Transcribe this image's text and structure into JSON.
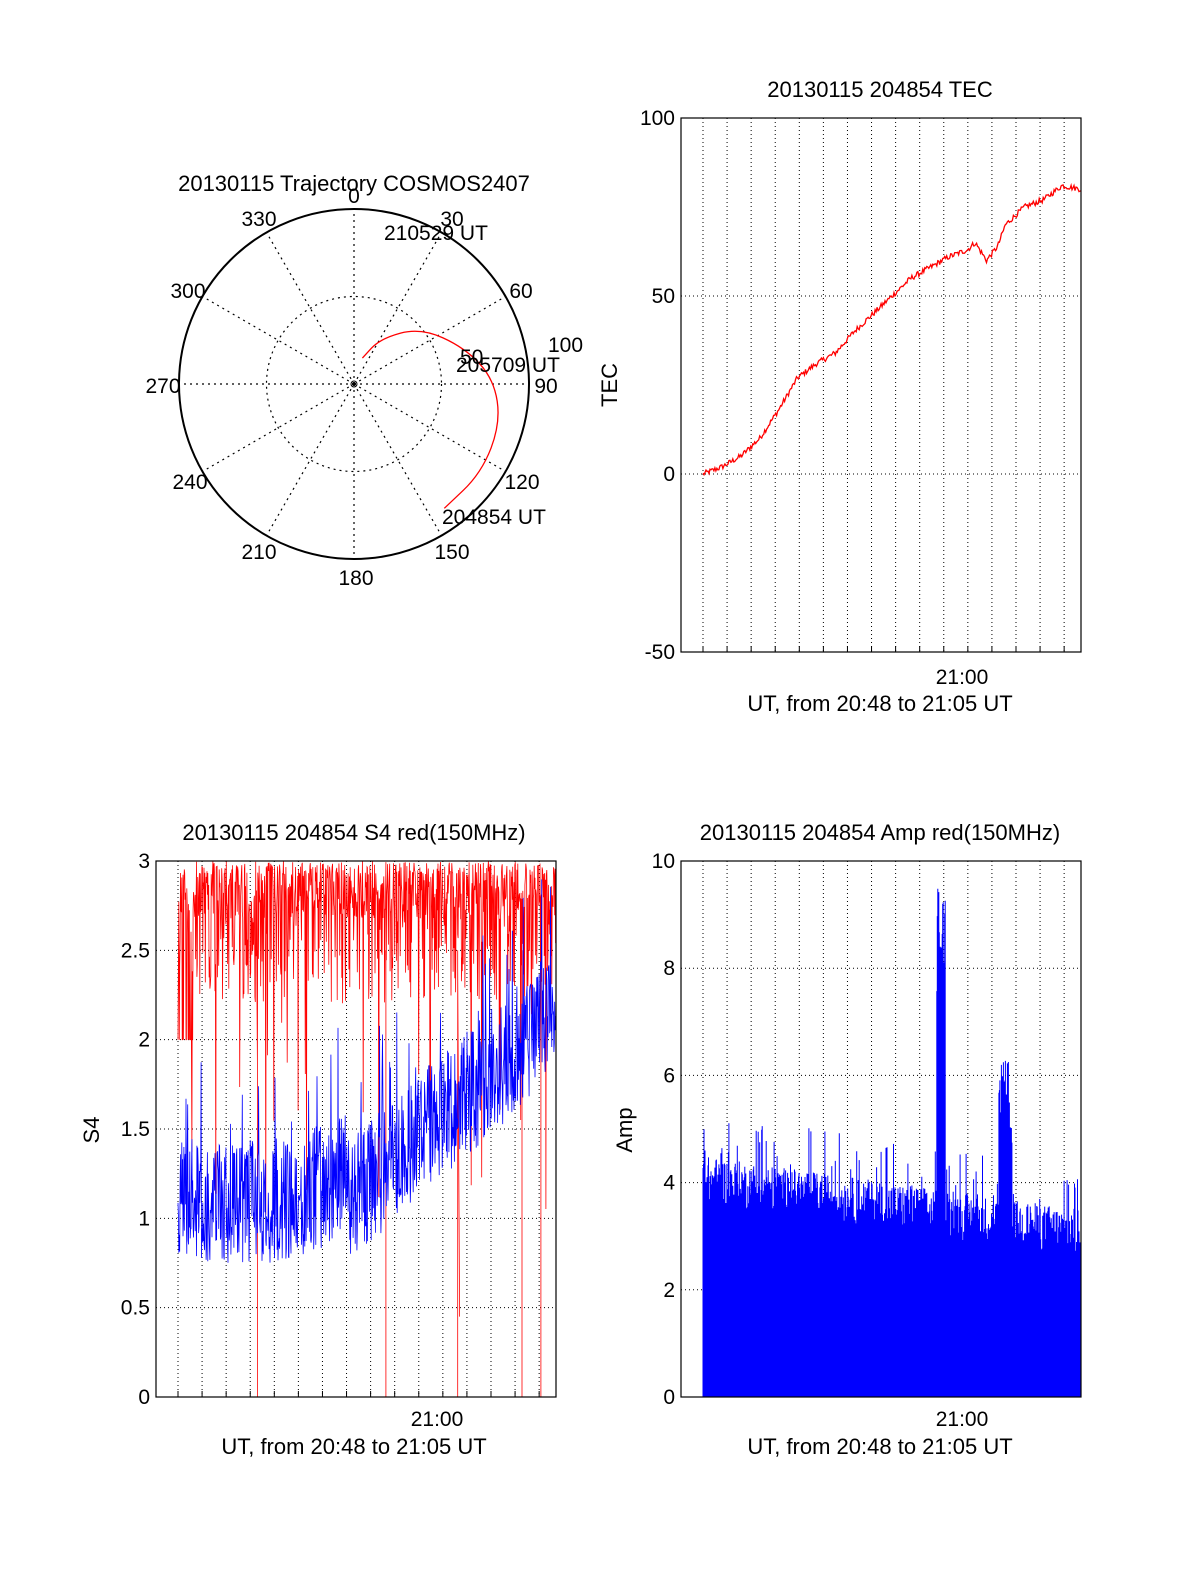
{
  "chart_data": [
    {
      "type": "polar",
      "title": "20130115 Trajectory COSMOS2407",
      "angle_labels": [
        "0",
        "30",
        "60",
        "90",
        "120",
        "150",
        "180",
        "210",
        "240",
        "270",
        "300",
        "330"
      ],
      "radius_labels": [
        "50",
        "100"
      ],
      "grid": true,
      "series": [
        {
          "color": "#ff0000",
          "points": [
            {
              "azimuth": 18,
              "elevation": 76
            },
            {
              "azimuth": 30,
              "elevation": 63
            },
            {
              "azimuth": 50,
              "elevation": 45
            },
            {
              "azimuth": 72,
              "elevation": 30
            },
            {
              "azimuth": 88,
              "elevation": 18
            },
            {
              "azimuth": 105,
              "elevation": 12
            },
            {
              "azimuth": 125,
              "elevation": 10
            },
            {
              "azimuth": 144,
              "elevation": 11
            }
          ]
        }
      ],
      "annotations": [
        "210529 UT",
        "205709 UT",
        "204854 UT"
      ]
    },
    {
      "type": "line",
      "title": "20130115 204854 TEC",
      "xlabel": "UT, from 20:48 to 21:05 UT",
      "ylabel": "TEC",
      "xlim": [
        0,
        1
      ],
      "ylim": [
        -50,
        100
      ],
      "yticks": [
        "100",
        "50",
        "0",
        "-50"
      ],
      "xtick_label": "21:00",
      "grid": true,
      "series": [
        {
          "color": "#ff0000",
          "x": [
            0.0,
            0.05,
            0.1,
            0.15,
            0.2,
            0.25,
            0.3,
            0.35,
            0.4,
            0.45,
            0.5,
            0.55,
            0.6,
            0.65,
            0.7,
            0.72,
            0.75,
            0.78,
            0.8,
            0.85,
            0.9,
            0.95,
            1.0
          ],
          "y": [
            0,
            2,
            5,
            10,
            18,
            27,
            31,
            34,
            40,
            45,
            50,
            55,
            58,
            61,
            63,
            65,
            60,
            64,
            70,
            75,
            77,
            81,
            80
          ]
        }
      ]
    },
    {
      "type": "line",
      "title": "20130115 204854 S4 red(150MHz)",
      "xlabel": "UT, from 20:48 to 21:05 UT",
      "ylabel": "S4",
      "ylim": [
        0,
        3
      ],
      "yticks": [
        "3",
        "2.5",
        "2",
        "1.5",
        "1",
        "0.5",
        "0"
      ],
      "xtick_label": "21:00",
      "grid": true,
      "series": [
        {
          "color": "#ff0000",
          "description_level": [
            2.7,
            2.6,
            2.5,
            2.6,
            2.8,
            2.8
          ]
        },
        {
          "color": "#0000ff",
          "description_level": [
            1.1,
            1.1,
            1.2,
            1.4,
            1.7,
            2.0
          ]
        }
      ]
    },
    {
      "type": "bar",
      "title": "20130115 204854 Amp red(150MHz)",
      "xlabel": "UT, from 20:48 to 21:05 UT",
      "ylabel": "Amp",
      "ylim": [
        0,
        10
      ],
      "yticks": [
        "10",
        "8",
        "6",
        "4",
        "2",
        "0"
      ],
      "xtick_label": "21:00",
      "grid": true,
      "series": [
        {
          "color": "#0000ff",
          "baseline_level": 3.2,
          "peaks": [
            {
              "x": 0.63,
              "y": 9.5
            },
            {
              "x": 0.8,
              "y": 6.3
            }
          ]
        }
      ]
    }
  ]
}
